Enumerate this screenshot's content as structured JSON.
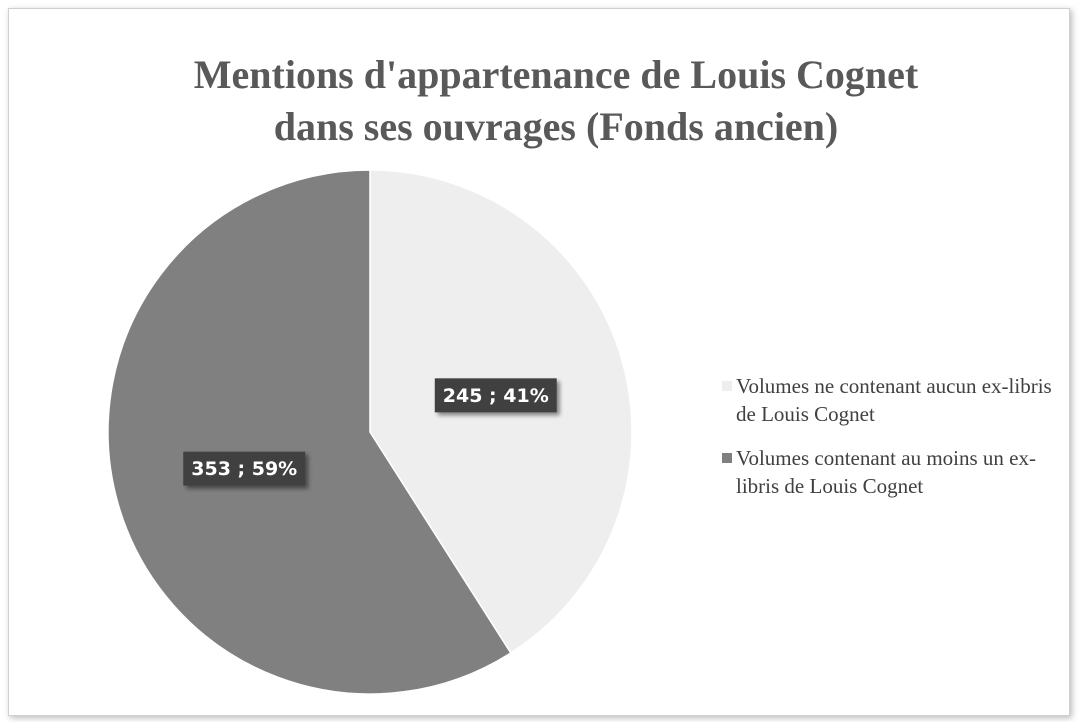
{
  "chart_data": {
    "type": "pie",
    "title": [
      "Mentions d'appartenance de Louis Cognet",
      "dans ses ouvrages (Fonds ancien)"
    ],
    "categories": [
      "Volumes ne contenant aucun ex-libris de Louis Cognet",
      "Volumes contenant au moins un ex-libris de Louis Cognet"
    ],
    "values": [
      245,
      353
    ],
    "value_labels": [
      "245 ; 41%",
      "353 ; 59%"
    ],
    "colors": [
      "#eeeeee",
      "#808080"
    ],
    "legend": "right"
  }
}
